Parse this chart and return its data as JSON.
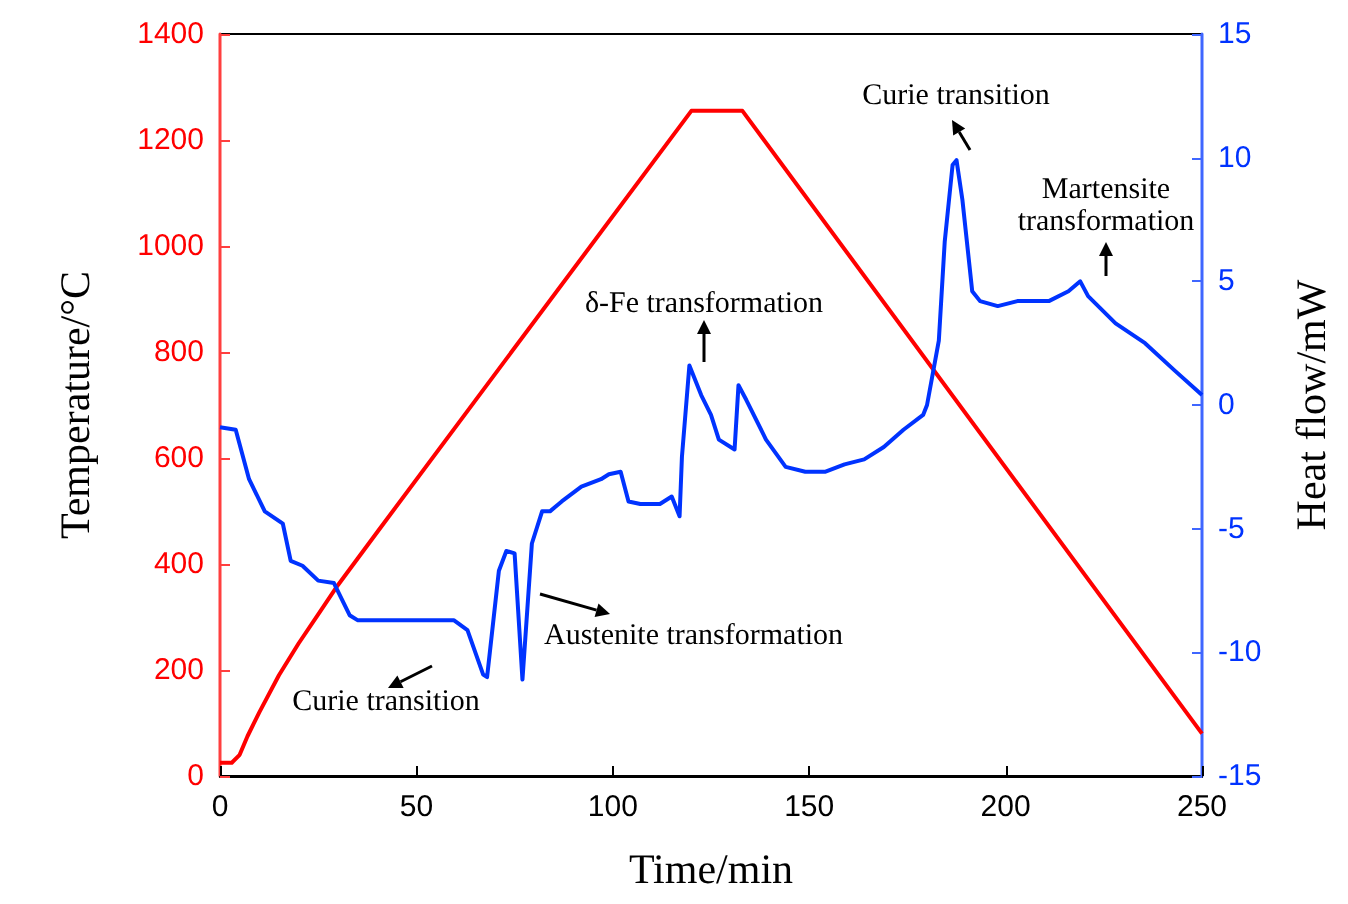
{
  "chart_data": {
    "type": "line",
    "xlabel": "Time/min",
    "ylabel": "Temperature/°C",
    "y2label": "Heat flow/mW",
    "xlim": [
      0,
      250
    ],
    "xticks": [
      0,
      50,
      100,
      150,
      200,
      250
    ],
    "ylim": [
      0,
      1400
    ],
    "yticks": [
      0,
      200,
      400,
      600,
      800,
      1000,
      1200,
      1400
    ],
    "y2lim": [
      -15,
      15
    ],
    "y2ticks": [
      -15,
      -10,
      -5,
      0,
      5,
      10,
      15
    ],
    "marker": "none",
    "series": [
      {
        "color": "#ff0000",
        "x": [
          0,
          3,
          5,
          7,
          10,
          15,
          20,
          25,
          30,
          35,
          40,
          120,
          133,
          250
        ],
        "values": [
          25,
          25,
          40,
          75,
          120,
          190,
          250,
          305,
          360,
          410,
          460,
          1255,
          1255,
          80
        ]
      },
      {
        "color": "#0033ff",
        "axis": "y2",
        "x": [
          0,
          4,
          7.4,
          11.4,
          16,
          18,
          21,
          25,
          29,
          33,
          35,
          59.5,
          63,
          67,
          68,
          71,
          72.9,
          75,
          77,
          79.4,
          82,
          84,
          87,
          92,
          97,
          99,
          102,
          104,
          107,
          112,
          115,
          117,
          117.6,
          119.5,
          122.5,
          125,
          127,
          131,
          132,
          134,
          139,
          144,
          149,
          154,
          159,
          164,
          169,
          174,
          179,
          180,
          183,
          184.5,
          186.5,
          187.5,
          189,
          191.5,
          193.5,
          198,
          203,
          211,
          216,
          219,
          221,
          228,
          235.5,
          243,
          250
        ],
        "values": [
          -0.9,
          -1.0,
          -3.0,
          -4.3,
          -4.8,
          -6.3,
          -6.5,
          -7.1,
          -7.2,
          -8.5,
          -8.7,
          -8.7,
          -9.1,
          -10.9,
          -11.0,
          -6.7,
          -5.9,
          -6.0,
          -11.1,
          -5.6,
          -4.3,
          -4.3,
          -3.9,
          -3.3,
          -3.0,
          -2.8,
          -2.7,
          -3.9,
          -4.0,
          -4.0,
          -3.7,
          -4.5,
          -2.1,
          1.6,
          0.4,
          -0.4,
          -1.4,
          -1.8,
          0.8,
          0.2,
          -1.4,
          -2.5,
          -2.7,
          -2.7,
          -2.4,
          -2.2,
          -1.7,
          -1.0,
          -0.4,
          0,
          2.6,
          6.6,
          9.7,
          9.9,
          8.3,
          4.6,
          4.2,
          4.0,
          4.2,
          4.2,
          4.6,
          5.0,
          4.4,
          3.3,
          2.5,
          1.4,
          0.4
        ]
      }
    ],
    "annotations": [
      "Curie transition",
      "Austenite transformation",
      "δ-Fe transformation",
      "Curie transition",
      "Martensite transformation"
    ]
  }
}
